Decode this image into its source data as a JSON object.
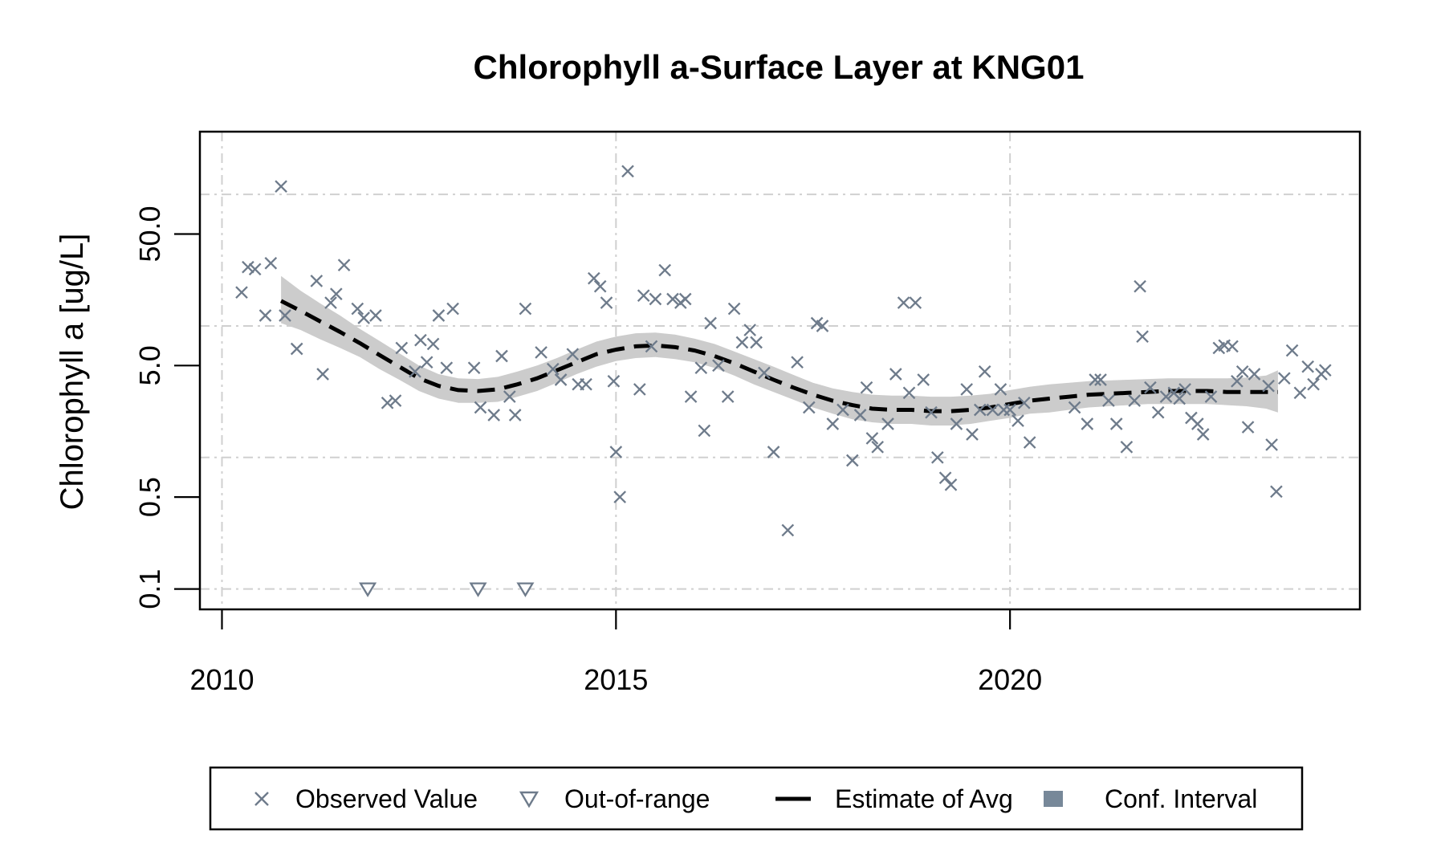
{
  "chart_data": {
    "type": "scatter",
    "title": "Chlorophyll a-Surface Layer at KNG01",
    "xlabel": "",
    "ylabel": "Chlorophyll a [ug/L]",
    "y_scale": "log",
    "xlim": [
      2009.72,
      2024.44
    ],
    "ylim": [
      0.07,
      300
    ],
    "x_ticks": [
      2010,
      2015,
      2020
    ],
    "x_tick_labels": [
      "2010",
      "2015",
      "2020"
    ],
    "y_ticks": [
      0.1,
      0.5,
      5.0,
      50.0
    ],
    "y_tick_labels": [
      "0.1",
      "0.5",
      "5.0",
      "50.0"
    ],
    "y_grid": [
      0.1,
      1,
      10,
      100
    ],
    "x_grid": [
      2010,
      2015,
      2020
    ],
    "grid": true,
    "legend_position": "bottom",
    "colors": {
      "observed": "#6e7b8b",
      "out_of_range": "#6e7b8b",
      "estimate": "#000000",
      "conf_interval": "#cccccc",
      "legend_conf": "#778899",
      "grid": "#d0d0d0"
    },
    "legend": [
      {
        "label": "Observed Value",
        "symbol": "x"
      },
      {
        "label": "Out-of-range",
        "symbol": "triangle-down"
      },
      {
        "label": "Estimate of Avg",
        "symbol": "dashed-line"
      },
      {
        "label": "Conf. Interval",
        "symbol": "square"
      }
    ],
    "series": [
      {
        "name": "Observed Value",
        "points": [
          [
            2010.25,
            18
          ],
          [
            2010.33,
            28
          ],
          [
            2010.42,
            27
          ],
          [
            2010.55,
            12
          ],
          [
            2010.62,
            30
          ],
          [
            2010.75,
            115
          ],
          [
            2010.8,
            12
          ],
          [
            2010.95,
            6.7
          ],
          [
            2011.2,
            22
          ],
          [
            2011.28,
            4.3
          ],
          [
            2011.38,
            15
          ],
          [
            2011.45,
            17.5
          ],
          [
            2011.55,
            29
          ],
          [
            2011.72,
            13.5
          ],
          [
            2011.8,
            11.5
          ],
          [
            2011.95,
            12
          ],
          [
            2012.1,
            2.6
          ],
          [
            2012.2,
            2.7
          ],
          [
            2012.28,
            6.8
          ],
          [
            2012.45,
            4.5
          ],
          [
            2012.52,
            7.8
          ],
          [
            2012.6,
            5.3
          ],
          [
            2012.68,
            7.3
          ],
          [
            2012.75,
            12
          ],
          [
            2012.85,
            4.8
          ],
          [
            2012.93,
            13.5
          ],
          [
            2013.2,
            4.8
          ],
          [
            2013.28,
            2.4
          ],
          [
            2013.45,
            2.1
          ],
          [
            2013.55,
            5.9
          ],
          [
            2013.65,
            2.9
          ],
          [
            2013.72,
            2.1
          ],
          [
            2013.85,
            13.5
          ],
          [
            2014.05,
            6.3
          ],
          [
            2014.2,
            4.7
          ],
          [
            2014.3,
            3.9
          ],
          [
            2014.45,
            6.1
          ],
          [
            2014.52,
            3.6
          ],
          [
            2014.62,
            3.6
          ],
          [
            2014.72,
            23
          ],
          [
            2014.8,
            20
          ],
          [
            2014.88,
            15
          ],
          [
            2014.97,
            3.8
          ],
          [
            2015.0,
            1.1
          ],
          [
            2015.05,
            0.5
          ],
          [
            2015.15,
            150
          ],
          [
            2015.3,
            3.3
          ],
          [
            2015.35,
            17
          ],
          [
            2015.45,
            7
          ],
          [
            2015.5,
            16
          ],
          [
            2015.62,
            26.5
          ],
          [
            2015.72,
            16
          ],
          [
            2015.82,
            15
          ],
          [
            2015.88,
            16
          ],
          [
            2015.95,
            2.9
          ],
          [
            2016.08,
            4.8
          ],
          [
            2016.12,
            1.6
          ],
          [
            2016.2,
            10.5
          ],
          [
            2016.3,
            5
          ],
          [
            2016.42,
            2.9
          ],
          [
            2016.5,
            13.5
          ],
          [
            2016.6,
            7.5
          ],
          [
            2016.7,
            9.3
          ],
          [
            2016.78,
            7.5
          ],
          [
            2016.88,
            4.4
          ],
          [
            2017.0,
            1.1
          ],
          [
            2017.18,
            0.28
          ],
          [
            2017.3,
            5.3
          ],
          [
            2017.45,
            2.4
          ],
          [
            2017.55,
            10.5
          ],
          [
            2017.62,
            10
          ],
          [
            2017.75,
            1.8
          ],
          [
            2017.88,
            2.3
          ],
          [
            2018.0,
            0.95
          ],
          [
            2018.1,
            2.1
          ],
          [
            2018.18,
            3.4
          ],
          [
            2018.25,
            1.4
          ],
          [
            2018.32,
            1.2
          ],
          [
            2018.45,
            1.8
          ],
          [
            2018.55,
            4.3
          ],
          [
            2018.65,
            15
          ],
          [
            2018.72,
            3.1
          ],
          [
            2018.8,
            15
          ],
          [
            2018.9,
            3.9
          ],
          [
            2019.0,
            2.2
          ],
          [
            2019.08,
            1.0
          ],
          [
            2019.18,
            0.7
          ],
          [
            2019.25,
            0.62
          ],
          [
            2019.32,
            1.8
          ],
          [
            2019.45,
            3.3
          ],
          [
            2019.52,
            1.5
          ],
          [
            2019.62,
            2.3
          ],
          [
            2019.68,
            4.5
          ],
          [
            2019.78,
            2.3
          ],
          [
            2019.88,
            3.3
          ],
          [
            2019.92,
            2.3
          ],
          [
            2020.0,
            2.3
          ],
          [
            2020.1,
            1.9
          ],
          [
            2020.18,
            2.6
          ],
          [
            2020.25,
            1.3
          ],
          [
            2020.82,
            2.4
          ],
          [
            2020.98,
            1.8
          ],
          [
            2021.08,
            3.9
          ],
          [
            2021.15,
            3.9
          ],
          [
            2021.25,
            2.7
          ],
          [
            2021.35,
            1.8
          ],
          [
            2021.48,
            1.2
          ],
          [
            2021.58,
            2.7
          ],
          [
            2021.65,
            20
          ],
          [
            2021.68,
            8.3
          ],
          [
            2021.78,
            3.4
          ],
          [
            2021.88,
            2.2
          ],
          [
            2021.98,
            2.9
          ],
          [
            2022.08,
            3.1
          ],
          [
            2022.15,
            2.8
          ],
          [
            2022.22,
            3.3
          ],
          [
            2022.3,
            2.0
          ],
          [
            2022.38,
            1.8
          ],
          [
            2022.45,
            1.5
          ],
          [
            2022.55,
            2.9
          ],
          [
            2022.65,
            6.8
          ],
          [
            2022.72,
            7.1
          ],
          [
            2022.82,
            7
          ],
          [
            2022.88,
            3.8
          ],
          [
            2022.95,
            4.5
          ],
          [
            2023.02,
            1.7
          ],
          [
            2023.1,
            4.3
          ],
          [
            2023.28,
            3.5
          ],
          [
            2023.32,
            1.25
          ],
          [
            2023.38,
            0.55
          ],
          [
            2023.48,
            4
          ],
          [
            2023.58,
            6.5
          ],
          [
            2023.68,
            3.1
          ],
          [
            2023.78,
            4.9
          ],
          [
            2023.85,
            3.6
          ],
          [
            2023.95,
            4.3
          ],
          [
            2024.0,
            4.6
          ]
        ]
      },
      {
        "name": "Out-of-range",
        "points": [
          [
            2011.85,
            0.1
          ],
          [
            2013.25,
            0.1
          ],
          [
            2013.85,
            0.1
          ]
        ]
      },
      {
        "name": "Estimate of Avg",
        "points": [
          [
            2010.75,
            15.5
          ],
          [
            2011.0,
            13
          ],
          [
            2011.25,
            10.8
          ],
          [
            2011.5,
            9
          ],
          [
            2011.75,
            7.4
          ],
          [
            2012.0,
            6.0
          ],
          [
            2012.25,
            4.9
          ],
          [
            2012.5,
            4.0
          ],
          [
            2012.75,
            3.5
          ],
          [
            2013.0,
            3.25
          ],
          [
            2013.25,
            3.2
          ],
          [
            2013.5,
            3.3
          ],
          [
            2013.75,
            3.6
          ],
          [
            2014.0,
            4.0
          ],
          [
            2014.25,
            4.6
          ],
          [
            2014.5,
            5.3
          ],
          [
            2014.75,
            6.1
          ],
          [
            2015.0,
            6.6
          ],
          [
            2015.25,
            7.0
          ],
          [
            2015.5,
            7.1
          ],
          [
            2015.75,
            6.9
          ],
          [
            2016.0,
            6.5
          ],
          [
            2016.25,
            5.9
          ],
          [
            2016.5,
            5.2
          ],
          [
            2016.75,
            4.5
          ],
          [
            2017.0,
            3.9
          ],
          [
            2017.25,
            3.4
          ],
          [
            2017.5,
            3.0
          ],
          [
            2017.75,
            2.7
          ],
          [
            2018.0,
            2.5
          ],
          [
            2018.25,
            2.35
          ],
          [
            2018.5,
            2.3
          ],
          [
            2018.75,
            2.3
          ],
          [
            2019.0,
            2.25
          ],
          [
            2019.25,
            2.25
          ],
          [
            2019.5,
            2.3
          ],
          [
            2019.75,
            2.4
          ],
          [
            2020.0,
            2.55
          ],
          [
            2020.25,
            2.7
          ],
          [
            2020.5,
            2.8
          ],
          [
            2020.75,
            2.9
          ],
          [
            2021.0,
            3.0
          ],
          [
            2021.25,
            3.05
          ],
          [
            2021.5,
            3.1
          ],
          [
            2021.75,
            3.15
          ],
          [
            2022.0,
            3.2
          ],
          [
            2022.25,
            3.2
          ],
          [
            2022.5,
            3.2
          ],
          [
            2022.75,
            3.15
          ],
          [
            2023.0,
            3.15
          ],
          [
            2023.25,
            3.15
          ],
          [
            2023.4,
            3.15
          ]
        ]
      },
      {
        "name": "Conf. Interval",
        "band": [
          [
            2010.75,
            10.5,
            24
          ],
          [
            2011.0,
            9.3,
            18.5
          ],
          [
            2011.25,
            7.9,
            14.8
          ],
          [
            2011.5,
            6.8,
            12
          ],
          [
            2011.75,
            5.8,
            9.5
          ],
          [
            2012.0,
            4.7,
            7.7
          ],
          [
            2012.25,
            3.9,
            6.2
          ],
          [
            2012.5,
            3.2,
            5.0
          ],
          [
            2012.75,
            2.8,
            4.3
          ],
          [
            2013.0,
            2.6,
            4.0
          ],
          [
            2013.25,
            2.6,
            3.95
          ],
          [
            2013.5,
            2.65,
            4.1
          ],
          [
            2013.75,
            2.9,
            4.5
          ],
          [
            2014.0,
            3.2,
            5.0
          ],
          [
            2014.25,
            3.7,
            5.7
          ],
          [
            2014.5,
            4.3,
            6.6
          ],
          [
            2014.75,
            4.9,
            7.6
          ],
          [
            2015.0,
            5.4,
            8.3
          ],
          [
            2015.25,
            5.7,
            8.8
          ],
          [
            2015.5,
            5.8,
            8.9
          ],
          [
            2015.75,
            5.6,
            8.6
          ],
          [
            2016.0,
            5.3,
            8.0
          ],
          [
            2016.25,
            4.8,
            7.3
          ],
          [
            2016.5,
            4.2,
            6.4
          ],
          [
            2016.75,
            3.6,
            5.6
          ],
          [
            2017.0,
            3.15,
            4.9
          ],
          [
            2017.25,
            2.75,
            4.25
          ],
          [
            2017.5,
            2.4,
            3.7
          ],
          [
            2017.75,
            2.15,
            3.35
          ],
          [
            2018.0,
            1.95,
            3.15
          ],
          [
            2018.25,
            1.85,
            3.0
          ],
          [
            2018.5,
            1.8,
            2.95
          ],
          [
            2018.75,
            1.8,
            2.95
          ],
          [
            2019.0,
            1.75,
            2.9
          ],
          [
            2019.25,
            1.75,
            2.9
          ],
          [
            2019.5,
            1.8,
            2.95
          ],
          [
            2019.75,
            1.9,
            3.05
          ],
          [
            2020.0,
            2.0,
            3.25
          ],
          [
            2020.25,
            2.15,
            3.45
          ],
          [
            2020.5,
            2.2,
            3.6
          ],
          [
            2020.75,
            2.3,
            3.7
          ],
          [
            2021.0,
            2.4,
            3.8
          ],
          [
            2021.25,
            2.45,
            3.85
          ],
          [
            2021.5,
            2.5,
            3.9
          ],
          [
            2021.75,
            2.55,
            3.95
          ],
          [
            2022.0,
            2.55,
            4.0
          ],
          [
            2022.25,
            2.55,
            4.0
          ],
          [
            2022.5,
            2.55,
            4.0
          ],
          [
            2022.75,
            2.5,
            4.0
          ],
          [
            2023.0,
            2.45,
            4.05
          ],
          [
            2023.25,
            2.35,
            4.2
          ],
          [
            2023.4,
            2.2,
            4.6
          ]
        ]
      }
    ]
  }
}
